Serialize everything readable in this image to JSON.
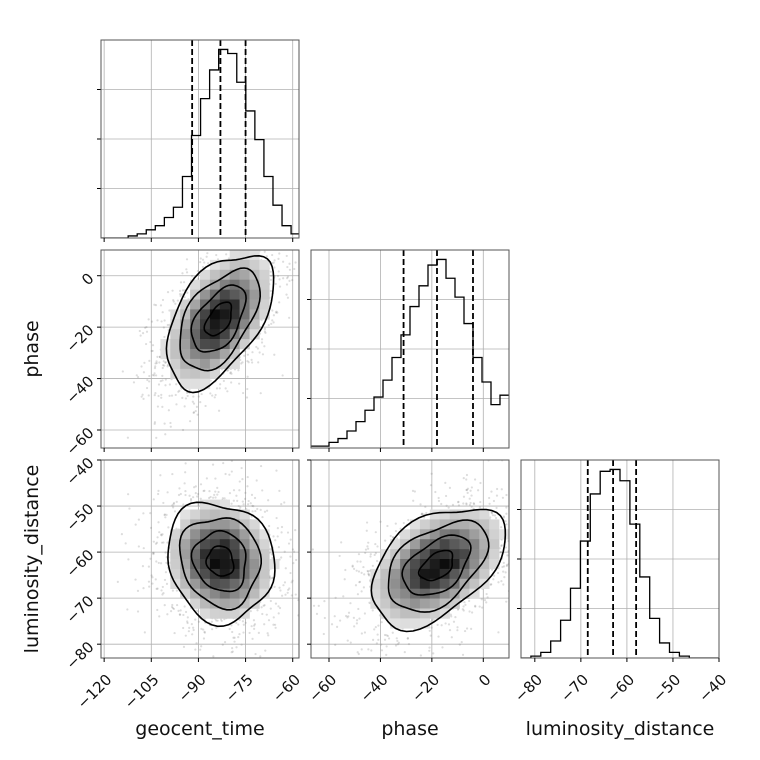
{
  "chart_data": {
    "type": "corner",
    "parameters": [
      "geocent_time",
      "phase",
      "luminosity_distance"
    ],
    "axis_labels": {
      "geocent_time": "geocent_time",
      "phase": "phase",
      "luminosity_distance": "luminosity_distance"
    },
    "ranges": {
      "geocent_time": [
        -121,
        -58
      ],
      "phase": [
        -67,
        10
      ],
      "luminosity_distance": [
        -83,
        -40
      ]
    },
    "ticks": {
      "geocent_time": [
        -120,
        -105,
        -90,
        -75,
        -60
      ],
      "phase": [
        -60,
        -40,
        -20,
        0
      ],
      "luminosity_distance": [
        -80,
        -70,
        -60,
        -50,
        -40
      ]
    },
    "tick_labels": {
      "geocent_time": [
        "−120",
        "−105",
        "−90",
        "−75",
        "−60"
      ],
      "phase": [
        "−60",
        "−40",
        "−20",
        "0"
      ],
      "luminosity_distance": [
        "−80",
        "−70",
        "−60",
        "−50",
        "−40"
      ]
    },
    "quantiles": {
      "geocent_time": [
        -92,
        -83,
        -75
      ],
      "phase": [
        -31,
        -18,
        -4
      ],
      "luminosity_distance": [
        -68.5,
        -63,
        -58
      ]
    },
    "histograms": {
      "geocent_time": {
        "bins": [
          -121,
          -118.12,
          -115.24,
          -112.36,
          -109.48,
          -106.6,
          -103.72,
          -100.84,
          -97.96,
          -95.08,
          -92.2,
          -89.32,
          -86.44,
          -83.56,
          -80.68,
          -77.8,
          -74.92,
          -72.04,
          -69.16,
          -66.28,
          -63.4,
          -60.52,
          -58
        ],
        "counts": [
          0,
          0,
          0,
          1,
          2,
          4,
          6,
          10,
          15,
          30,
          50,
          68,
          82,
          92,
          90,
          76,
          62,
          48,
          30,
          16,
          6,
          2
        ]
      },
      "phase": {
        "bins": [
          -67,
          -63.5,
          -60,
          -56.5,
          -53,
          -49.5,
          -46,
          -42.5,
          -39,
          -35.5,
          -32,
          -28.5,
          -25,
          -21.5,
          -18,
          -14.5,
          -11,
          -7.5,
          -4,
          -0.5,
          3,
          6.5,
          10
        ],
        "counts": [
          1,
          1,
          3,
          5,
          9,
          14,
          20,
          27,
          36,
          48,
          60,
          75,
          86,
          97,
          100,
          90,
          80,
          66,
          48,
          35,
          23,
          28
        ]
      },
      "luminosity_distance": {
        "bins": [
          -83,
          -80.85,
          -78.7,
          -76.55,
          -74.4,
          -72.25,
          -70.1,
          -67.95,
          -65.8,
          -63.65,
          -61.5,
          -59.35,
          -57.2,
          -55.05,
          -52.9,
          -50.75,
          -48.6,
          -46.45,
          -44.3,
          -42.15,
          -40
        ],
        "counts": [
          0,
          1,
          3,
          9,
          20,
          37,
          62,
          87,
          99,
          100,
          94,
          71,
          43,
          21,
          8,
          3,
          1,
          0,
          0,
          0
        ]
      }
    },
    "pairs": [
      {
        "x": "geocent_time",
        "y": "phase",
        "mean": [
          -83.5,
          -17
        ],
        "sd": [
          8.5,
          13
        ],
        "rho": 0.5
      },
      {
        "x": "geocent_time",
        "y": "luminosity_distance",
        "mean": [
          -83,
          -62
        ],
        "sd": [
          8.5,
          6.5
        ],
        "rho": -0.1
      },
      {
        "x": "phase",
        "y": "luminosity_distance",
        "mean": [
          -18,
          -63
        ],
        "sd": [
          13,
          6.5
        ],
        "rho": 0.45
      }
    ],
    "density_contour_levels": [
      0.118,
      0.393,
      0.675,
      0.865
    ],
    "grid": true,
    "colors": {
      "line": "#000000",
      "scatter": "#777777",
      "grid": "#b0b0b0"
    }
  }
}
